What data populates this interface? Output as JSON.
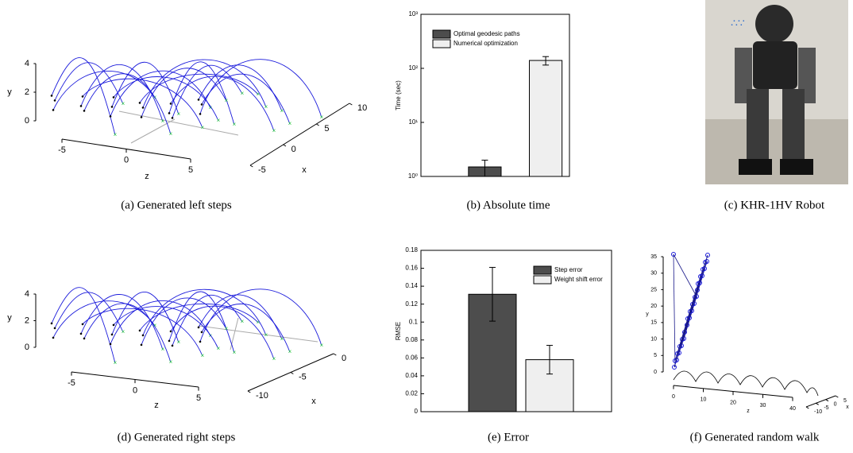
{
  "chart_data": [
    {
      "type": "line3d",
      "caption": "(a)  Generated left steps",
      "xlabel": "x",
      "ylabel": "y",
      "zlabel": "z",
      "yticks": [
        0,
        2,
        4
      ],
      "zticks": [
        -5,
        0,
        5
      ],
      "xticks": [
        -5,
        0,
        5,
        10
      ]
    },
    {
      "type": "bar",
      "caption": "(b)  Absolute time",
      "ylabel": "Time (sec)",
      "log_scale": true,
      "ylim": [
        1,
        1000
      ],
      "yticks": [
        {
          "value": 1,
          "label": "10⁰"
        },
        {
          "value": 10,
          "label": "10¹"
        },
        {
          "value": 100,
          "label": "10²"
        },
        {
          "value": 1000,
          "label": "10³"
        }
      ],
      "legend": "upper left",
      "series": [
        {
          "name": "Optimal geodesic paths",
          "color": "#4d4d4d",
          "values": [
            1.5
          ],
          "errors": [
            0.5
          ]
        },
        {
          "name": "Numerical optimization",
          "color": "#efefef",
          "values": [
            140
          ],
          "errors": [
            25
          ]
        }
      ]
    },
    {
      "type": "image",
      "caption": "(c)  KHR-1HV Robot"
    },
    {
      "type": "line3d",
      "caption": "(d)  Generated right steps",
      "xlabel": "x",
      "ylabel": "y",
      "zlabel": "z",
      "yticks": [
        0,
        2,
        4
      ],
      "zticks": [
        -5,
        0,
        5
      ],
      "xticks": [
        -10,
        -5,
        0
      ]
    },
    {
      "type": "bar",
      "caption": "(e)  Error",
      "ylabel": "RMSE",
      "log_scale": false,
      "ylim": [
        0,
        0.18
      ],
      "yticks": [
        0,
        0.02,
        0.04,
        0.06,
        0.08,
        0.1,
        0.12,
        0.14,
        0.16,
        0.18
      ],
      "legend": "upper right",
      "series": [
        {
          "name": "Step error",
          "color": "#4d4d4d",
          "values": [
            0.131
          ],
          "errors": [
            0.03
          ]
        },
        {
          "name": "Weight shift error",
          "color": "#efefef",
          "values": [
            0.058
          ],
          "errors": [
            0.016
          ]
        }
      ]
    },
    {
      "type": "line3d",
      "caption": "(f)  Generated random walk",
      "xlabel": "x",
      "ylabel": "y",
      "zlabel": "z",
      "yticks": [
        0,
        5,
        10,
        15,
        20,
        25,
        30,
        35
      ],
      "zticks": [
        0,
        10,
        20,
        30,
        40
      ],
      "xticks": [
        -10,
        -5,
        0,
        5
      ]
    }
  ]
}
